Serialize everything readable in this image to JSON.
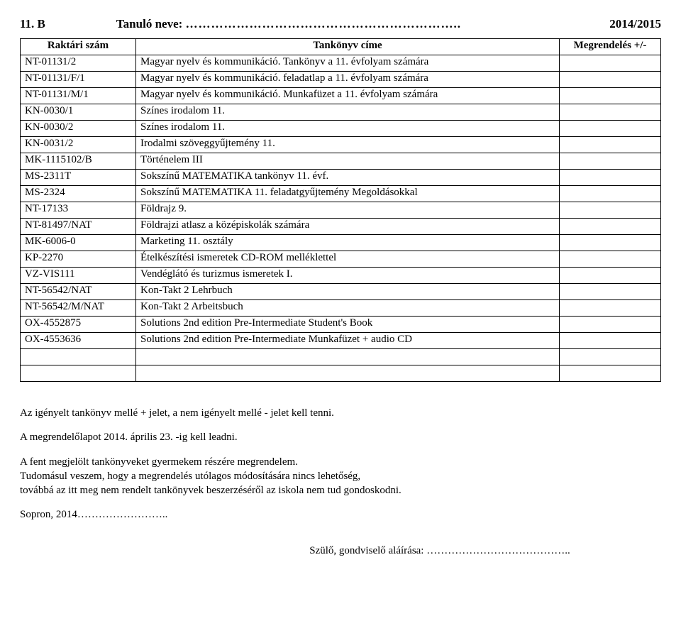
{
  "header": {
    "class_id": "11. B",
    "name_label": "Tanuló neve:",
    "name_dots": "………………………………………………………..",
    "year": "2014/2015"
  },
  "table": {
    "headers": {
      "code": "Raktári szám",
      "title": "Tankönyv címe",
      "order": "Megrendelés +/-"
    },
    "rows": [
      {
        "code": "NT-01131/2",
        "title": "Magyar nyelv és kommunikáció. Tankönyv a 11. évfolyam számára"
      },
      {
        "code": "NT-01131/F/1",
        "title": "Magyar nyelv és kommunikáció. feladatlap a 11. évfolyam számára"
      },
      {
        "code": "NT-01131/M/1",
        "title": "Magyar nyelv és kommunikáció. Munkafüzet a 11. évfolyam számára"
      },
      {
        "code": "KN-0030/1",
        "title": "Színes irodalom 11."
      },
      {
        "code": "KN-0030/2",
        "title": "Színes irodalom 11."
      },
      {
        "code": "KN-0031/2",
        "title": "Irodalmi szöveggyűjtemény 11."
      },
      {
        "code": "MK-1115102/B",
        "title": "Történelem III"
      },
      {
        "code": "MS-2311T",
        "title": "Sokszínű MATEMATIKA tankönyv 11. évf."
      },
      {
        "code": "MS-2324",
        "title": "Sokszínű MATEMATIKA 11. feladatgyűjtemény Megoldásokkal"
      },
      {
        "code": "NT-17133",
        "title": "Földrajz 9."
      },
      {
        "code": "NT-81497/NAT",
        "title": "Földrajzi atlasz a középiskolák számára"
      },
      {
        "code": "MK-6006-0",
        "title": "Marketing 11. osztály"
      },
      {
        "code": "KP-2270",
        "title": "Ételkészítési ismeretek CD-ROM melléklettel"
      },
      {
        "code": "VZ-VIS111",
        "title": "Vendéglátó és turizmus ismeretek I."
      },
      {
        "code": "NT-56542/NAT",
        "title": "Kon-Takt 2 Lehrbuch"
      },
      {
        "code": "NT-56542/M/NAT",
        "title": "Kon-Takt 2 Arbeitsbuch"
      },
      {
        "code": "OX-4552875",
        "title": "Solutions 2nd edition Pre-Intermediate Student's Book"
      },
      {
        "code": "OX-4553636",
        "title": "Solutions 2nd edition Pre-Intermediate Munkafüzet + audio CD"
      },
      {
        "code": "",
        "title": ""
      },
      {
        "code": "",
        "title": ""
      }
    ]
  },
  "notes": {
    "line1": "Az igényelt tankönyv mellé + jelet, a nem igényelt mellé - jelet kell tenni.",
    "line2": "A megrendelőlapot 2014. április 23. -ig kell leadni.",
    "line3a": "A fent megjelölt tankönyveket gyermekem részére  megrendelem.",
    "line3b": "Tudomásul veszem, hogy a megrendelés utólagos módosítására nincs lehetőség,",
    "line3c": " továbbá az itt meg nem rendelt tankönyvek beszerzéséről az iskola nem tud gondoskodni.",
    "line4": "Sopron, 2014……………………..",
    "signature": "Szülő, gondviselő aláírása: ………………………………….."
  }
}
